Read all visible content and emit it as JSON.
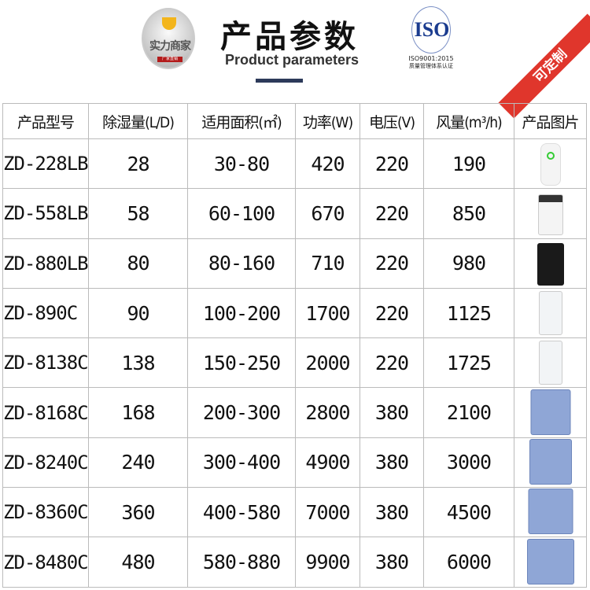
{
  "header": {
    "logo_text": "实力商家",
    "logo_tag": "厂家直销",
    "title": "产品参数",
    "subtitle": "Product parameters",
    "iso_mark": "ISO",
    "iso_cert": "ISO9001:2015",
    "iso_caption": "质量管理体系认证",
    "badge": "可定制"
  },
  "table": {
    "columns": [
      "产品型号",
      "除湿量(L/D)",
      "适用面积(㎡)",
      "功率(W)",
      "电压(V)",
      "风量(m³/h)",
      "产品图片"
    ],
    "rows": [
      {
        "model": "ZD-228LB",
        "capacity": "28",
        "area": "30-80",
        "power": "420",
        "voltage": "220",
        "airflow": "190",
        "image": "white-slim-dehumidifier-icon"
      },
      {
        "model": "ZD-558LB",
        "capacity": "58",
        "area": "60-100",
        "power": "670",
        "voltage": "220",
        "airflow": "850",
        "image": "white-black-top-dehumidifier-icon"
      },
      {
        "model": "ZD-880LB",
        "capacity": "80",
        "area": "80-160",
        "power": "710",
        "voltage": "220",
        "airflow": "980",
        "image": "black-dehumidifier-icon"
      },
      {
        "model": "ZD-890C",
        "capacity": "90",
        "area": "100-200",
        "power": "1700",
        "voltage": "220",
        "airflow": "1125",
        "image": "white-tall-dehumidifier-icon"
      },
      {
        "model": "ZD-8138C",
        "capacity": "138",
        "area": "150-250",
        "power": "2000",
        "voltage": "220",
        "airflow": "1725",
        "image": "white-tall-dehumidifier-icon"
      },
      {
        "model": "ZD-8168C",
        "capacity": "168",
        "area": "200-300",
        "power": "2800",
        "voltage": "380",
        "airflow": "2100",
        "image": "blue-industrial-dehumidifier-icon"
      },
      {
        "model": "ZD-8240C",
        "capacity": "240",
        "area": "300-400",
        "power": "4900",
        "voltage": "380",
        "airflow": "3000",
        "image": "blue-industrial-dehumidifier-icon"
      },
      {
        "model": "ZD-8360C",
        "capacity": "360",
        "area": "400-580",
        "power": "7000",
        "voltage": "380",
        "airflow": "4500",
        "image": "blue-industrial-dehumidifier-icon"
      },
      {
        "model": "ZD-8480C",
        "capacity": "480",
        "area": "580-880",
        "power": "9900",
        "voltage": "380",
        "airflow": "6000",
        "image": "blue-industrial-dehumidifier-icon"
      }
    ]
  },
  "colors": {
    "badge": "#e0362c",
    "iso_blue": "#1b3c8f",
    "device_blue": "#8fa6d6"
  }
}
